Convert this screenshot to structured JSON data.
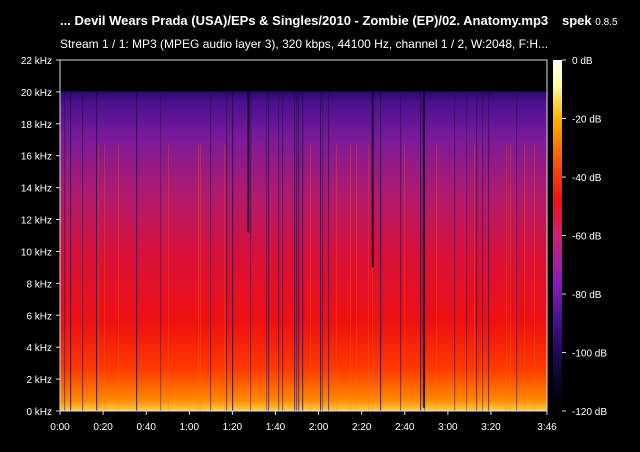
{
  "window": {
    "title": "... Devil Wears Prada (USA)/EPs & Singles/2010 - Zombie (EP)/02. Anatomy.mp3",
    "app_name": "spek",
    "app_version": "0.8.5",
    "stream_info": "Stream 1 / 1: MP3 (MPEG audio layer 3), 320 kbps, 44100 Hz, channel 1 / 2, W:2048, F:H..."
  },
  "spectrogram": {
    "frequency_labels": [
      "0 kHz",
      "2 kHz",
      "4 kHz",
      "6 kHz",
      "8 kHz",
      "10 kHz",
      "12 kHz",
      "14 kHz",
      "16 kHz",
      "18 kHz",
      "20 kHz",
      "22 kHz"
    ],
    "time_labels": [
      "0:00",
      "0:20",
      "0:40",
      "1:00",
      "1:20",
      "1:40",
      "2:00",
      "2:20",
      "2:40",
      "3:00",
      "3:20",
      "3:46"
    ],
    "time_label_seconds": [
      0,
      20,
      40,
      60,
      80,
      100,
      120,
      140,
      160,
      180,
      200,
      226
    ],
    "duration_seconds": 226,
    "max_khz": 22,
    "cutoff_khz": 20
  },
  "legend": {
    "db_labels": [
      "0 dB",
      "-20 dB",
      "-40 dB",
      "-60 dB",
      "-80 dB",
      "-100 dB",
      "-120 dB"
    ],
    "db_values": [
      0,
      -20,
      -40,
      -60,
      -80,
      -100,
      -120
    ],
    "colors": [
      "#000000",
      "#0a0633",
      "#3b0f8a",
      "#8a1abf",
      "#d01f76",
      "#f01010",
      "#ff5a00",
      "#ffb000",
      "#ffff9a",
      "#ffffff"
    ]
  }
}
